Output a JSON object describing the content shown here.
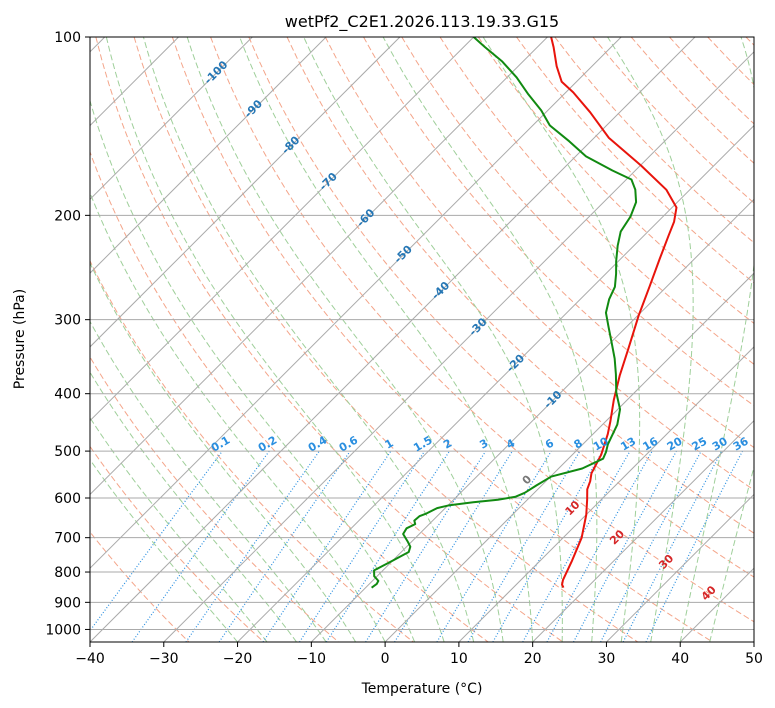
{
  "chart_data": {
    "type": "line",
    "title": "wetPf2_C2E1.2026.113.19.33.G15",
    "xlabel": "Temperature (°C)",
    "ylabel": "Pressure (hPa)",
    "xlim": [
      -40,
      50
    ],
    "ylim": [
      1050,
      100
    ],
    "x_ticks": [
      -40,
      -30,
      -20,
      -10,
      0,
      10,
      20,
      30,
      40,
      50
    ],
    "x_tick_labels": [
      "−40",
      "−30",
      "−20",
      "−10",
      "0",
      "10",
      "20",
      "30",
      "40",
      "50"
    ],
    "y_ticks": [
      100,
      200,
      300,
      400,
      500,
      600,
      700,
      800,
      900,
      1000
    ],
    "y_tick_labels": [
      "100",
      "200",
      "300",
      "400",
      "500",
      "600",
      "700",
      "800",
      "900",
      "1000"
    ],
    "grid": true,
    "skew": "skew-T log-P",
    "series": [
      {
        "name": "temperature",
        "color": "#e8140c",
        "points": [
          {
            "t": 16.8,
            "p": 850
          },
          {
            "t": 16.2,
            "p": 840
          },
          {
            "t": 15.7,
            "p": 825
          },
          {
            "t": 14.3,
            "p": 765
          },
          {
            "t": 12.5,
            "p": 700
          },
          {
            "t": 10.0,
            "p": 640
          },
          {
            "t": 8.1,
            "p": 604
          },
          {
            "t": 6.7,
            "p": 580
          },
          {
            "t": 6.0,
            "p": 562
          },
          {
            "t": 5.1,
            "p": 545
          },
          {
            "t": 3.9,
            "p": 507
          },
          {
            "t": 2.0,
            "p": 468
          },
          {
            "t": 0.6,
            "p": 445
          },
          {
            "t": -1.8,
            "p": 410
          },
          {
            "t": -4.3,
            "p": 373
          },
          {
            "t": -6.7,
            "p": 337
          },
          {
            "t": -9.9,
            "p": 295
          },
          {
            "t": -12.4,
            "p": 263
          },
          {
            "t": -14.7,
            "p": 237
          },
          {
            "t": -16.6,
            "p": 217
          },
          {
            "t": -17.8,
            "p": 205
          },
          {
            "t": -19.4,
            "p": 194
          },
          {
            "t": -23.2,
            "p": 181
          },
          {
            "t": -29.8,
            "p": 165
          },
          {
            "t": -38.0,
            "p": 148
          },
          {
            "t": -44.0,
            "p": 134
          },
          {
            "t": -49.0,
            "p": 124
          },
          {
            "t": -52.0,
            "p": 119
          },
          {
            "t": -54.8,
            "p": 112
          },
          {
            "t": -57.8,
            "p": 104
          },
          {
            "t": -59.5,
            "p": 100
          }
        ]
      },
      {
        "name": "dewpoint",
        "color": "#118a11",
        "points": [
          {
            "t": -9.2,
            "p": 850
          },
          {
            "t": -9.0,
            "p": 838
          },
          {
            "t": -9.2,
            "p": 828
          },
          {
            "t": -10.4,
            "p": 813
          },
          {
            "t": -11.2,
            "p": 795
          },
          {
            "t": -10.2,
            "p": 770
          },
          {
            "t": -9.0,
            "p": 740
          },
          {
            "t": -9.5,
            "p": 725
          },
          {
            "t": -10.6,
            "p": 710
          },
          {
            "t": -12.2,
            "p": 690
          },
          {
            "t": -12.5,
            "p": 675
          },
          {
            "t": -11.9,
            "p": 664
          },
          {
            "t": -12.5,
            "p": 655
          },
          {
            "t": -12.4,
            "p": 644
          },
          {
            "t": -11.8,
            "p": 637
          },
          {
            "t": -11.1,
            "p": 624
          },
          {
            "t": -9.8,
            "p": 617
          },
          {
            "t": -7.0,
            "p": 610
          },
          {
            "t": -4.0,
            "p": 604
          },
          {
            "t": -2.0,
            "p": 597
          },
          {
            "t": -1.3,
            "p": 588
          },
          {
            "t": -0.7,
            "p": 571
          },
          {
            "t": 0.1,
            "p": 552
          },
          {
            "t": 3.2,
            "p": 535
          },
          {
            "t": 4.7,
            "p": 515
          },
          {
            "t": 4.2,
            "p": 502
          },
          {
            "t": 3.4,
            "p": 487
          },
          {
            "t": 2.0,
            "p": 451
          },
          {
            "t": 0.3,
            "p": 425
          },
          {
            "t": -2.5,
            "p": 398
          },
          {
            "t": -5.0,
            "p": 371
          },
          {
            "t": -7.3,
            "p": 349
          },
          {
            "t": -10.0,
            "p": 327
          },
          {
            "t": -12.5,
            "p": 308
          },
          {
            "t": -14.7,
            "p": 292
          },
          {
            "t": -16.1,
            "p": 277
          },
          {
            "t": -17.0,
            "p": 264
          },
          {
            "t": -18.6,
            "p": 251
          },
          {
            "t": -20.3,
            "p": 239
          },
          {
            "t": -22.2,
            "p": 225
          },
          {
            "t": -23.7,
            "p": 213
          },
          {
            "t": -24.4,
            "p": 201
          },
          {
            "t": -25.6,
            "p": 190
          },
          {
            "t": -27.4,
            "p": 181
          },
          {
            "t": -29.3,
            "p": 174
          },
          {
            "t": -33.1,
            "p": 168
          },
          {
            "t": -38.6,
            "p": 159
          },
          {
            "t": -42.9,
            "p": 150
          },
          {
            "t": -47.7,
            "p": 141
          },
          {
            "t": -50.9,
            "p": 133
          },
          {
            "t": -54.8,
            "p": 125
          },
          {
            "t": -58.7,
            "p": 117
          },
          {
            "t": -62.8,
            "p": 110
          },
          {
            "t": -67.1,
            "p": 104
          },
          {
            "t": -70.0,
            "p": 100
          }
        ]
      }
    ],
    "dry_adiabat_labels": [
      "-100",
      "-90",
      "-80",
      "-70",
      "-60",
      "-50",
      "-40",
      "-30",
      "-20",
      "-10"
    ],
    "moist_adiabat_labels": [
      "0",
      "10",
      "20",
      "30",
      "40"
    ],
    "mixing_ratio_labels": [
      "0.1",
      "0.2",
      "0.4",
      "0.6",
      "1",
      "1.5",
      "2",
      "3",
      "4",
      "6",
      "8",
      "10",
      "13",
      "16",
      "20",
      "25",
      "30",
      "36"
    ],
    "colors": {
      "isotherm": "#aaaaaa",
      "isobar": "#aaaaaa",
      "dry_adiabat": "#f4a58a",
      "moist_adiabat": "#9fcf9a",
      "mixing_ratio": "#2a8fe0",
      "dry_label": "#2677b5",
      "moist_label": "#d62728",
      "boundary": "#d6c2a5"
    }
  }
}
